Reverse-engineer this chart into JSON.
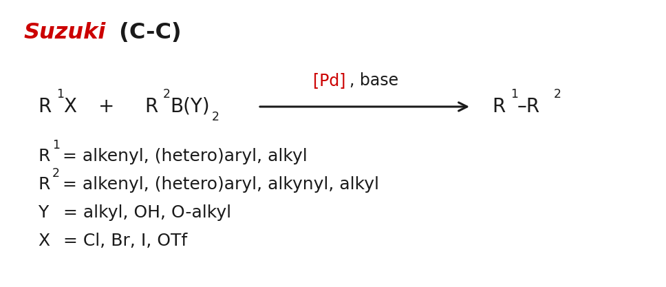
{
  "title_red": "Suzuki",
  "title_black": " (C-C)",
  "title_fontsize": 23,
  "bg_color": "#ffffff",
  "black": "#1a1a1a",
  "red": "#cc0000",
  "rxn_fontsize": 20,
  "leg_fontsize": 18,
  "arrow_label_red": "[Pd]",
  "arrow_label_black": ", base"
}
